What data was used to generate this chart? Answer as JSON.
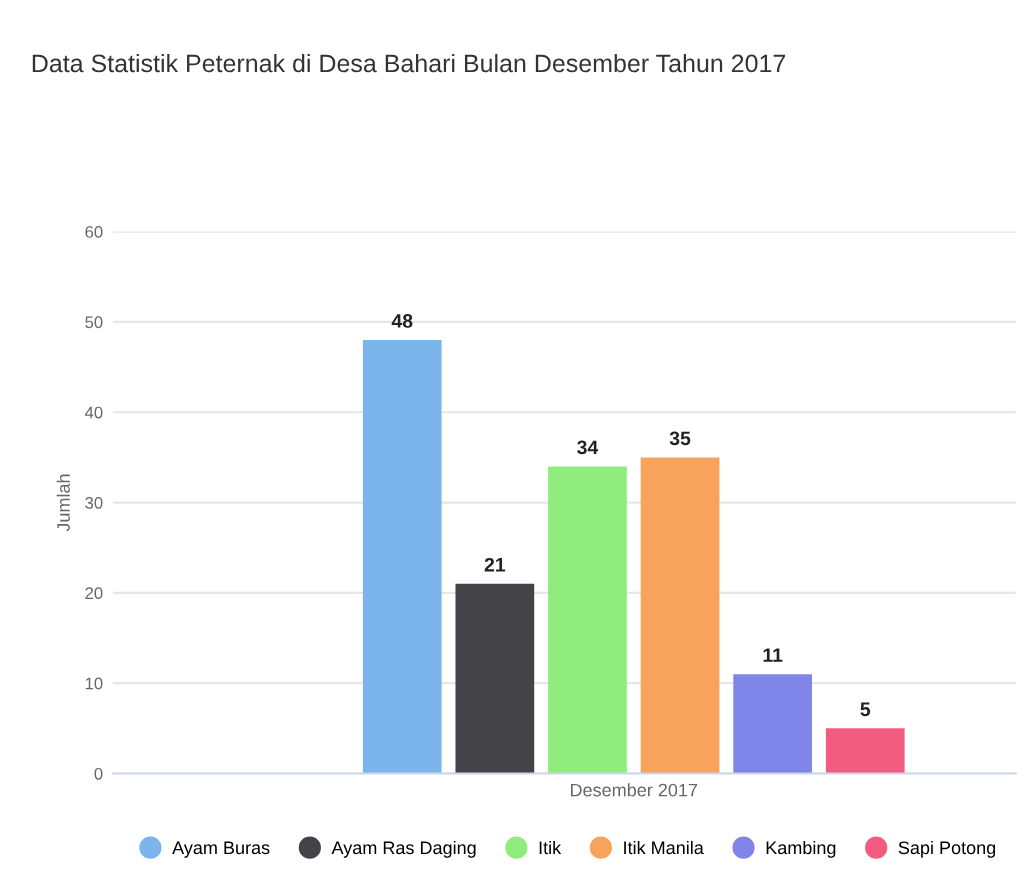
{
  "chart_data": {
    "type": "bar",
    "title": "Data Statistik Peternak di Desa Bahari Bulan Desember Tahun 2017",
    "ylabel": "Jumlah",
    "categories": [
      "Desember 2017"
    ],
    "series": [
      {
        "name": "Ayam Buras",
        "color": "#7cb5ec",
        "values": [
          48
        ]
      },
      {
        "name": "Ayam Ras Daging",
        "color": "#434348",
        "values": [
          21
        ]
      },
      {
        "name": "Itik",
        "color": "#90ed7d",
        "values": [
          34
        ]
      },
      {
        "name": "Itik Manila",
        "color": "#f7a35c",
        "values": [
          35
        ]
      },
      {
        "name": "Kambing",
        "color": "#8085e9",
        "values": [
          11
        ]
      },
      {
        "name": "Sapi Potong",
        "color": "#f15c80",
        "values": [
          5
        ]
      }
    ],
    "ylim": [
      0,
      60
    ],
    "yticks": [
      0,
      10,
      20,
      30,
      40,
      50,
      60
    ],
    "grid": "y",
    "legend": "bottom",
    "data_labels": true
  }
}
